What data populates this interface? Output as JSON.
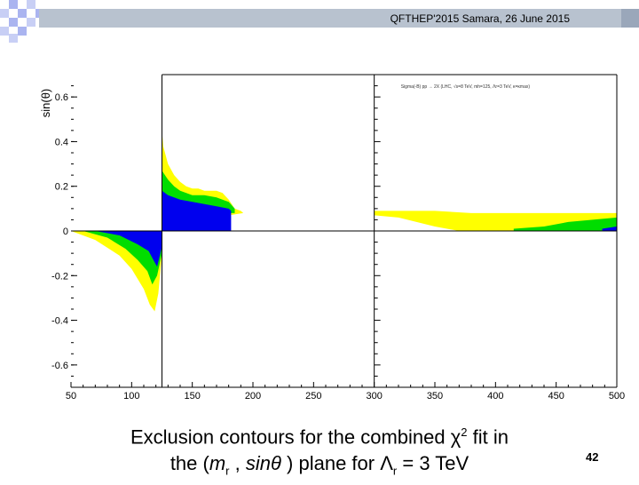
{
  "header": {
    "text": "QFTHEP'2015 Samara,  26 June 2015"
  },
  "slide": {
    "page_number": "42"
  },
  "caption": {
    "line1_prefix": "Exclusion contours for the combined χ",
    "line1_sup": "2",
    "line1_suffix": " fit in",
    "line2_a": "the (",
    "line2_m": "m",
    "line2_m_sub": "r",
    "line2_sep": " , ",
    "line2_sin": "sinθ",
    "line2_b": " ) plane for Λ",
    "line2_lambda_sub": "r",
    "line2_c": "  = 3 TeV"
  },
  "inset_legend": "Sigma(-B) pp → 2X (LHC, √s=8 TeV, mh=125, Λr=3 TeV, κ=κmax)",
  "colors": {
    "yellow": "#ffff00",
    "green": "#00dd00",
    "blue": "#0000ee",
    "header_bar": "#b8c2cf"
  },
  "chart_data": {
    "type": "area",
    "ylabel": "sin(θ)",
    "xlim": [
      50,
      500
    ],
    "ylim": [
      -0.7,
      0.7
    ],
    "x_ticks": [
      50,
      100,
      150,
      200,
      250,
      300,
      350,
      400,
      450,
      500
    ],
    "y_ticks": [
      0.6,
      0.4,
      0.2,
      0,
      -0.2,
      -0.4,
      -0.6
    ],
    "y_tick_labels": [
      "0.6",
      "0.4",
      "0.2",
      "0",
      "-0.2",
      "-0.4",
      "-0.6"
    ],
    "regions": [
      {
        "color": "yellow",
        "x": [
          50,
          70,
          90,
          100,
          110,
          115,
          119,
          122,
          125,
          125,
          50
        ],
        "y": [
          0,
          -0.04,
          -0.11,
          -0.17,
          -0.26,
          -0.33,
          -0.36,
          -0.28,
          -0.1,
          0,
          0
        ]
      },
      {
        "color": "green",
        "x": [
          60,
          80,
          95,
          105,
          113,
          117,
          121,
          125,
          125,
          60
        ],
        "y": [
          0,
          -0.03,
          -0.08,
          -0.13,
          -0.18,
          -0.24,
          -0.2,
          -0.1,
          0,
          0
        ]
      },
      {
        "color": "blue",
        "x": [
          70,
          90,
          105,
          114,
          118,
          121,
          125,
          125,
          70
        ],
        "y": [
          0,
          -0.02,
          -0.06,
          -0.09,
          -0.13,
          -0.16,
          -0.07,
          0,
          0
        ]
      },
      {
        "color": "yellow",
        "x": [
          125,
          126,
          130,
          135,
          140,
          145,
          150,
          155,
          160,
          165,
          170,
          175,
          180,
          185,
          190,
          192,
          180,
          170,
          160,
          150,
          140,
          130,
          125
        ],
        "y": [
          0.45,
          0.38,
          0.3,
          0.25,
          0.22,
          0.2,
          0.19,
          0.19,
          0.18,
          0.18,
          0.18,
          0.17,
          0.14,
          0.1,
          0.09,
          0.08,
          0.07,
          0.07,
          0.06,
          0.05,
          0.05,
          0.04,
          0.03
        ]
      },
      {
        "color": "green",
        "x": [
          125,
          130,
          135,
          140,
          150,
          160,
          170,
          180,
          185,
          185,
          125
        ],
        "y": [
          0.27,
          0.23,
          0.2,
          0.18,
          0.16,
          0.16,
          0.15,
          0.13,
          0.1,
          0.08,
          0.08
        ]
      },
      {
        "color": "blue",
        "x": [
          125,
          130,
          140,
          150,
          160,
          170,
          180,
          182,
          182,
          125
        ],
        "y": [
          0.18,
          0.16,
          0.14,
          0.13,
          0.12,
          0.11,
          0.1,
          0.09,
          0,
          0
        ]
      },
      {
        "color": "yellow",
        "x": [
          300,
          320,
          350,
          380,
          400,
          420,
          440,
          460,
          480,
          500,
          500,
          490,
          460,
          440,
          420,
          400,
          380,
          370,
          350,
          320,
          300
        ],
        "y": [
          0.09,
          0.09,
          0.09,
          0.08,
          0.08,
          0.08,
          0.08,
          0.08,
          0.08,
          0.08,
          0.0,
          0.0,
          0.0,
          0.0,
          0.0,
          0.0,
          0.0,
          0.0,
          0.02,
          0.06,
          0.07
        ]
      },
      {
        "color": "green",
        "x": [
          415,
          440,
          460,
          480,
          500,
          500,
          480,
          460,
          440,
          415
        ],
        "y": [
          0.01,
          0.02,
          0.04,
          0.05,
          0.06,
          0.0,
          0.0,
          0.0,
          0.0,
          0.0
        ]
      },
      {
        "color": "blue",
        "x": [
          488,
          500,
          500,
          488
        ],
        "y": [
          0.01,
          0.02,
          0.0,
          0.0
        ]
      }
    ]
  }
}
